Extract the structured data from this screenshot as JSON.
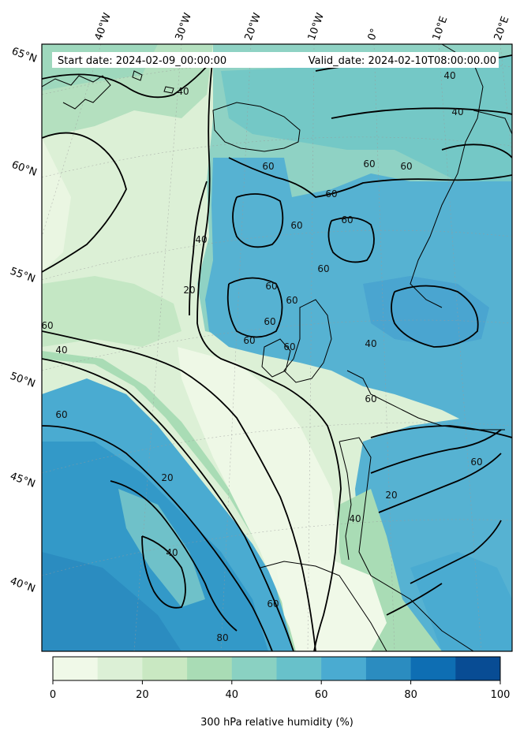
{
  "header": {
    "start_date": "Start date: 2024-02-09_00:00:00",
    "valid_date": "Valid_date: 2024-02-10T08:00:00.00"
  },
  "map": {
    "projection": "conic",
    "longitude_labels": [
      "40°W",
      "30°W",
      "20°W",
      "10°W",
      "0°",
      "10°E",
      "20°E"
    ],
    "latitude_labels": [
      "65°N",
      "60°N",
      "55°N",
      "50°N",
      "45°N",
      "40°N"
    ],
    "contour_levels": [
      20,
      40,
      60,
      80
    ],
    "contour_labels": [
      "40",
      "40",
      "40",
      "60",
      "60",
      "60",
      "60",
      "60",
      "60",
      "40",
      "20",
      "60",
      "60",
      "60",
      "40",
      "60",
      "40",
      "60",
      "60",
      "60",
      "60",
      "60",
      "20",
      "40",
      "60",
      "20",
      "40",
      "60",
      "80"
    ],
    "fill_palette": [
      "#f7fcf0",
      "#e0f3db",
      "#ccebc5",
      "#a8ddb5",
      "#7bccc4",
      "#4eb3d3",
      "#2b8cbe",
      "#0868ac",
      "#084081"
    ]
  },
  "colorbar": {
    "label": "300 hPa relative humidity (%)",
    "tick_labels": [
      "0",
      "20",
      "40",
      "60",
      "80",
      "100"
    ],
    "min": 0,
    "max": 100,
    "step": 10,
    "colors": [
      "#f0f9e8",
      "#dcf0d6",
      "#c9e8c2",
      "#a9dcb5",
      "#8ad1c2",
      "#68c1ca",
      "#4aabd1",
      "#2b8cc0",
      "#0e6eb3",
      "#084c94"
    ]
  }
}
